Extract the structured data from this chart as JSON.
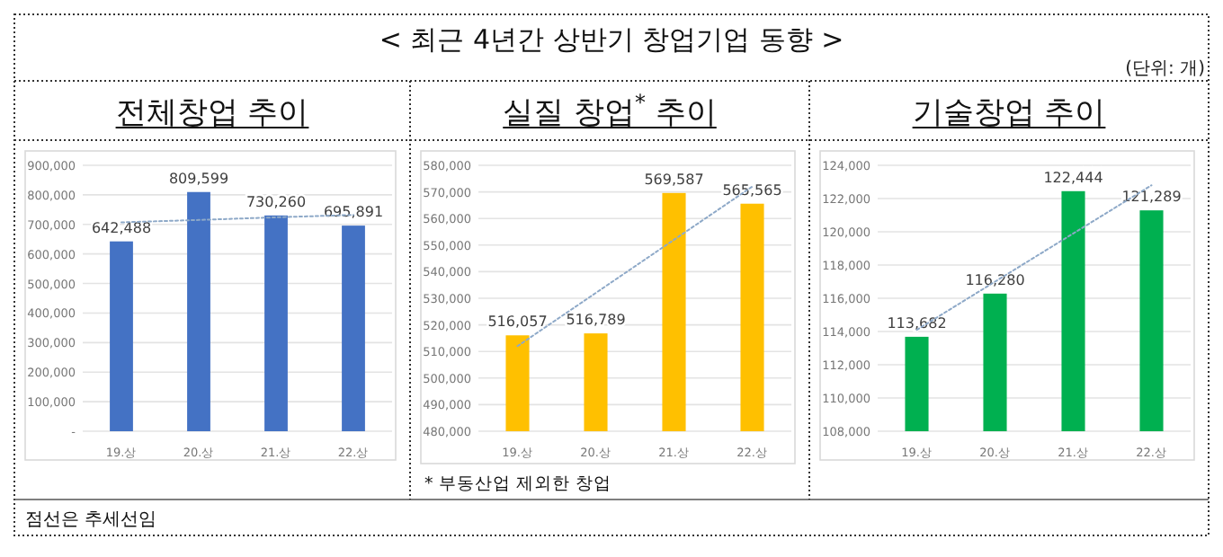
{
  "chart_data": [
    {
      "type": "bar",
      "title": "전체창업 추이",
      "categories": [
        "19.상",
        "20.상",
        "21.상",
        "22.상"
      ],
      "series": [
        {
          "type": "bar",
          "color": "#4472c4",
          "values": [
            642488,
            809599,
            730260,
            695891
          ],
          "value_labels": [
            "642,488",
            "809,599",
            "730,260",
            "695,891"
          ]
        },
        {
          "type": "line",
          "color": "#8ea9c8",
          "line_style": "dotted",
          "marker": "none",
          "values": [
            707000,
            715000,
            724000,
            732000
          ]
        }
      ],
      "ylim": [
        0,
        900000
      ],
      "yticks": [
        {
          "value": 0,
          "label": "-"
        },
        {
          "value": 100000,
          "label": "100,000"
        },
        {
          "value": 200000,
          "label": "200,000"
        },
        {
          "value": 300000,
          "label": "300,000"
        },
        {
          "value": 400000,
          "label": "400,000"
        },
        {
          "value": 500000,
          "label": "500,000"
        },
        {
          "value": 600000,
          "label": "600,000"
        },
        {
          "value": 700000,
          "label": "700,000"
        },
        {
          "value": 800000,
          "label": "800,000"
        },
        {
          "value": 900000,
          "label": "900,000"
        }
      ],
      "grid": "y",
      "annotations": [
        "< 최근 4년간 상반기 창업기업 동향 >",
        "(단위: 개)",
        "점선은 추세선임"
      ]
    },
    {
      "type": "bar",
      "title": "실질 창업$^{*}$ 추이",
      "categories": [
        "19.상",
        "20.상",
        "21.상",
        "22.상"
      ],
      "series": [
        {
          "type": "bar",
          "color": "#ffc000",
          "values": [
            516057,
            516789,
            569587,
            565565
          ],
          "value_labels": [
            "516,057",
            "516,789",
            "569,587",
            "565,565"
          ]
        },
        {
          "type": "line",
          "color": "#8ea9c8",
          "line_style": "dotted",
          "marker": "none",
          "values": [
            512000,
            532000,
            552000,
            572000
          ]
        }
      ],
      "ylim": [
        480000,
        580000
      ],
      "yticks": [
        {
          "value": 480000,
          "label": "480,000"
        },
        {
          "value": 490000,
          "label": "490,000"
        },
        {
          "value": 500000,
          "label": "500,000"
        },
        {
          "value": 510000,
          "label": "510,000"
        },
        {
          "value": 520000,
          "label": "520,000"
        },
        {
          "value": 530000,
          "label": "530,000"
        },
        {
          "value": 540000,
          "label": "540,000"
        },
        {
          "value": 550000,
          "label": "550,000"
        },
        {
          "value": 560000,
          "label": "560,000"
        },
        {
          "value": 570000,
          "label": "570,000"
        },
        {
          "value": 580000,
          "label": "580,000"
        }
      ],
      "grid": "y",
      "annotations": [
        "* 부동산업 제외한 창업"
      ]
    },
    {
      "type": "bar",
      "title": "기술창업 추이",
      "categories": [
        "19.상",
        "20.상",
        "21.상",
        "22.상"
      ],
      "series": [
        {
          "type": "bar",
          "color": "#00b050",
          "values": [
            113682,
            116280,
            122444,
            121289
          ],
          "value_labels": [
            "113,682",
            "116,280",
            "122,444",
            "121,289"
          ]
        },
        {
          "type": "line",
          "color": "#8ea9c8",
          "line_style": "dotted",
          "marker": "none",
          "values": [
            114100,
            117000,
            119900,
            122800
          ]
        }
      ],
      "ylim": [
        108000,
        124000
      ],
      "yticks": [
        {
          "value": 108000,
          "label": "108,000"
        },
        {
          "value": 110000,
          "label": "110,000"
        },
        {
          "value": 112000,
          "label": "112,000"
        },
        {
          "value": 114000,
          "label": "114,000"
        },
        {
          "value": 116000,
          "label": "116,000"
        },
        {
          "value": 118000,
          "label": "118,000"
        },
        {
          "value": 120000,
          "label": "120,000"
        },
        {
          "value": 122000,
          "label": "122,000"
        },
        {
          "value": 124000,
          "label": "124,000"
        }
      ],
      "grid": "y"
    }
  ]
}
